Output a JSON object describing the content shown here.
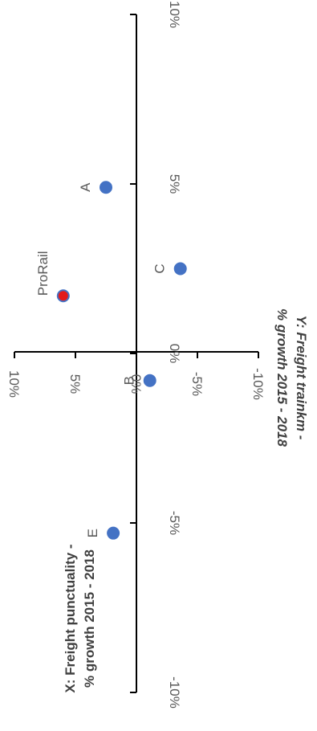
{
  "chart_data": {
    "type": "scatter",
    "xlabel_lines": [
      "X: Freight punctuality -",
      "% growth 2015 - 2018"
    ],
    "ylabel_lines": [
      "Y: Freight trainkm -",
      "% growth  2015 - 2018"
    ],
    "xlim": [
      -0.1,
      0.1
    ],
    "ylim": [
      -0.1,
      0.1
    ],
    "x_ticks": [
      {
        "value": -0.1,
        "label": "-10%"
      },
      {
        "value": -0.05,
        "label": "-5%"
      },
      {
        "value": 0.0,
        "label": "0%"
      },
      {
        "value": 0.05,
        "label": "5%"
      },
      {
        "value": 0.1,
        "label": "10%"
      }
    ],
    "y_ticks": [
      {
        "value": -0.1,
        "label": "-10%"
      },
      {
        "value": -0.05,
        "label": "-5%"
      },
      {
        "value": 0.0,
        "label": "0%"
      },
      {
        "value": 0.05,
        "label": "5%"
      },
      {
        "value": 0.1,
        "label": "10%"
      }
    ],
    "points": [
      {
        "label": "A",
        "x": 0.049,
        "y": 0.025,
        "color": "#4472c4",
        "outline": "#4472c4"
      },
      {
        "label": "ProRail",
        "x": 0.017,
        "y": 0.06,
        "color": "#e31a1c",
        "outline": "#4472c4"
      },
      {
        "label": "C",
        "x": 0.025,
        "y": -0.036,
        "color": "#4472c4",
        "outline": "#4472c4"
      },
      {
        "label": "B",
        "x": -0.008,
        "y": -0.011,
        "color": "#4472c4",
        "outline": "#4472c4"
      },
      {
        "label": "E",
        "x": -0.053,
        "y": 0.019,
        "color": "#4472c4",
        "outline": "#4472c4"
      }
    ],
    "grid": false,
    "legend": "none"
  }
}
